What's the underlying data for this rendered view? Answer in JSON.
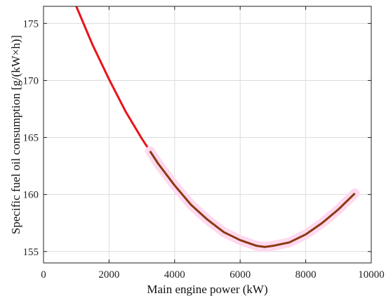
{
  "chart_data": {
    "type": "line",
    "title": "",
    "xlabel": "Main engine power (kW)",
    "ylabel": "Specific fuel oil consumption [g/(kW×h)]",
    "xlim": [
      0,
      10000
    ],
    "ylim": [
      154,
      176.5
    ],
    "x_ticks": [
      0,
      2000,
      4000,
      6000,
      8000,
      10000
    ],
    "x_tick_labels": [
      "0",
      "2000",
      "4000",
      "6000",
      "8000",
      "10000"
    ],
    "y_ticks": [
      155,
      160,
      165,
      170,
      175
    ],
    "y_tick_labels": [
      "155",
      "160",
      "165",
      "170",
      "175"
    ],
    "grid": true,
    "legend": "none",
    "series": [
      {
        "color": "#e8141b",
        "x": [
          1000,
          1500,
          2000,
          2500,
          3000,
          3250
        ],
        "y": [
          176.5,
          173.1,
          170.1,
          167.3,
          164.9,
          163.8
        ]
      },
      {
        "color": "#8a3a12",
        "highlight_color": "#ffd9ef",
        "x": [
          3250,
          3500,
          4000,
          4500,
          5000,
          5500,
          6000,
          6500,
          6750,
          7000,
          7500,
          8000,
          8500,
          9000,
          9500
        ],
        "y": [
          163.8,
          162.7,
          160.8,
          159.1,
          157.8,
          156.7,
          156.0,
          155.5,
          155.4,
          155.5,
          155.8,
          156.5,
          157.5,
          158.7,
          160.1
        ]
      }
    ]
  }
}
